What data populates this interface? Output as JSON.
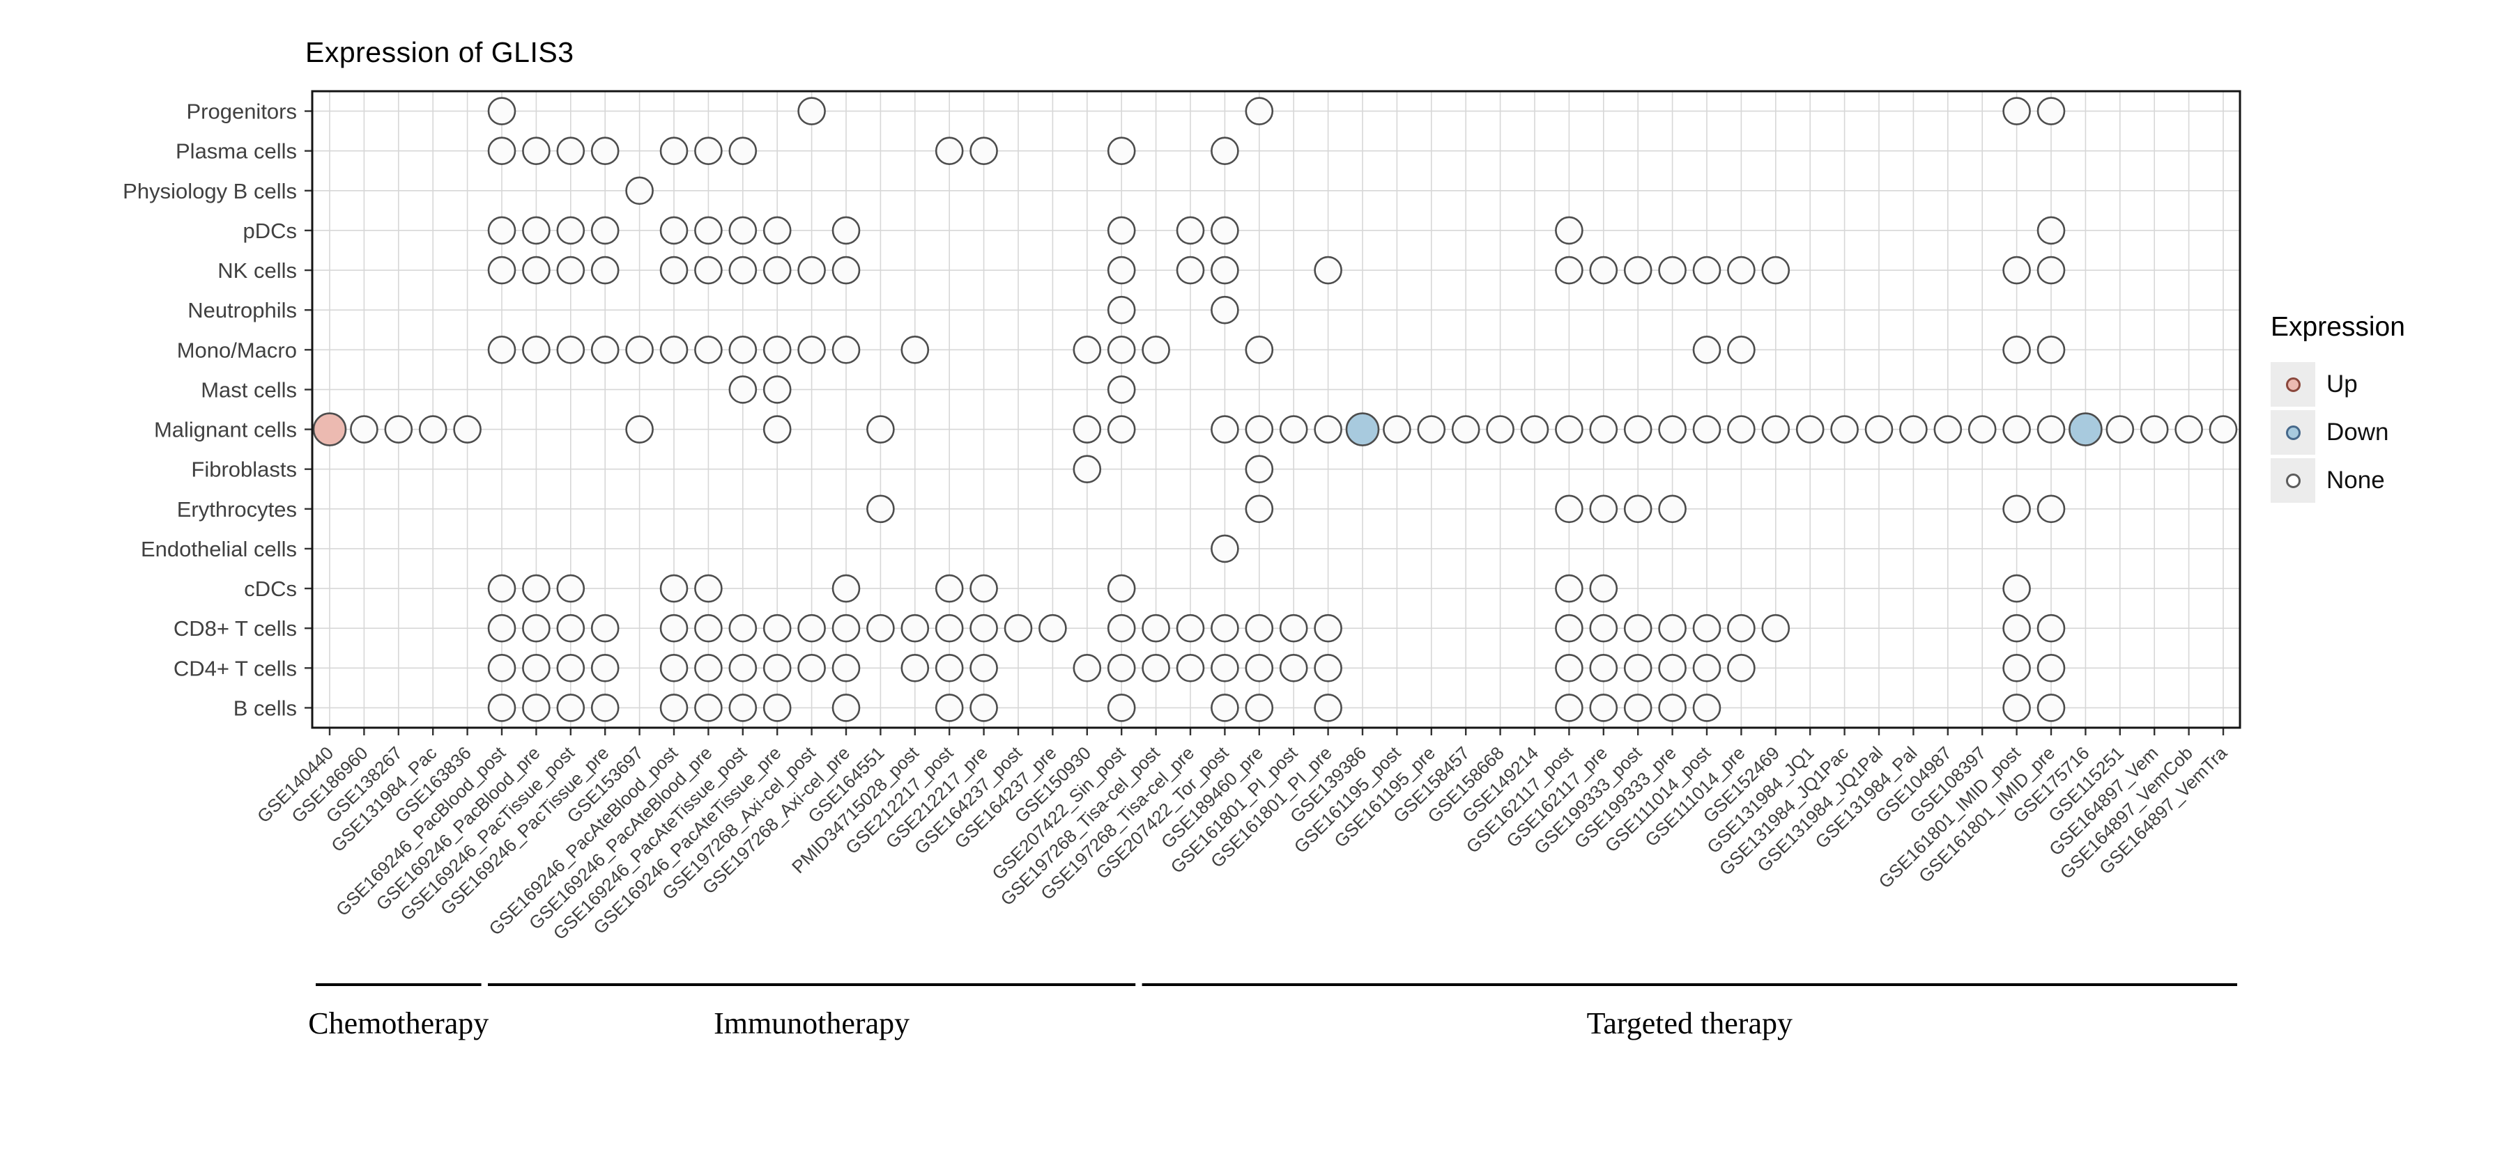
{
  "chart_data": {
    "type": "scatter",
    "subtype": "dot-grid",
    "title": "Expression of GLIS3",
    "grid": true,
    "legend_position": "right",
    "rows": [
      "Progenitors",
      "Plasma cells",
      "Physiology B cells",
      "pDCs",
      "NK cells",
      "Neutrophils",
      "Mono/Macro",
      "Mast cells",
      "Malignant cells",
      "Fibroblasts",
      "Erythrocytes",
      "Endothelial cells",
      "cDCs",
      "CD8+ T cells",
      "CD4+ T cells",
      "B cells"
    ],
    "columns": [
      "GSE140440",
      "GSE186960",
      "GSE138267",
      "GSE131984_Pac",
      "GSE163836",
      "GSE169246_PacBlood_post",
      "GSE169246_PacBlood_pre",
      "GSE169246_PacTissue_post",
      "GSE169246_PacTissue_pre",
      "GSE153697",
      "GSE169246_PacAteBlood_post",
      "GSE169246_PacAteBlood_pre",
      "GSE169246_PacAteTissue_post",
      "GSE169246_PacAteTissue_pre",
      "GSE197268_Axi-cel_post",
      "GSE197268_Axi-cel_pre",
      "GSE164551",
      "PMID34715028_post",
      "GSE212217_post",
      "GSE212217_pre",
      "GSE164237_post",
      "GSE164237_pre",
      "GSE150930",
      "GSE207422_Sin_post",
      "GSE197268_Tisa-cel_post",
      "GSE197268_Tisa-cel_pre",
      "GSE207422_Tor_post",
      "GSE189460_pre",
      "GSE161801_PI_post",
      "GSE161801_PI_pre",
      "GSE139386",
      "GSE161195_post",
      "GSE161195_pre",
      "GSE158457",
      "GSE158668",
      "GSE149214",
      "GSE162117_post",
      "GSE162117_pre",
      "GSE199333_post",
      "GSE199333_pre",
      "GSE111014_post",
      "GSE111014_pre",
      "GSE152469",
      "GSE131984_JQ1",
      "GSE131984_JQ1Pac",
      "GSE131984_JQ1Pal",
      "GSE131984_Pal",
      "GSE104987",
      "GSE108397",
      "GSE161801_IMID_post",
      "GSE161801_IMID_pre",
      "GSE175716",
      "GSE115251",
      "GSE164897_Vem",
      "GSE164897_VemCob",
      "GSE164897_VemTra"
    ],
    "groups": [
      {
        "label": "Chemotherapy",
        "start": 0,
        "end": 4
      },
      {
        "label": "Immunotherapy",
        "start": 5,
        "end": 23
      },
      {
        "label": "Targeted therapy",
        "start": 24,
        "end": 55
      }
    ],
    "legend": {
      "title": "Expression",
      "items": [
        {
          "label": "Up",
          "value": "up",
          "fill": "#ecbab1",
          "stroke": "#8a473c"
        },
        {
          "label": "Down",
          "value": "down",
          "fill": "#a8cade",
          "stroke": "#46688a"
        },
        {
          "label": "None",
          "value": "none",
          "fill": "#ffffff",
          "stroke": "#5c5c5c"
        }
      ]
    },
    "states": {
      "up_fill": "#ecbab1",
      "down_fill": "#a8cade",
      "none_fill": "#fbfbfb",
      "stroke": "#4d4d4d"
    },
    "cells": [
      {
        "row": "Progenitors",
        "none": [
          5,
          14,
          27,
          49,
          50
        ]
      },
      {
        "row": "Plasma cells",
        "none": [
          5,
          6,
          7,
          8,
          10,
          11,
          12,
          18,
          19,
          23,
          26
        ]
      },
      {
        "row": "Physiology B cells",
        "none": [
          9
        ]
      },
      {
        "row": "pDCs",
        "none": [
          5,
          6,
          7,
          8,
          10,
          11,
          12,
          13,
          15,
          23,
          25,
          26,
          36,
          50
        ]
      },
      {
        "row": "NK cells",
        "none": [
          5,
          6,
          7,
          8,
          10,
          11,
          12,
          13,
          14,
          15,
          23,
          25,
          26,
          29,
          36,
          37,
          38,
          39,
          40,
          41,
          42,
          49,
          50
        ]
      },
      {
        "row": "Neutrophils",
        "none": [
          23,
          26
        ]
      },
      {
        "row": "Mono/Macro",
        "none": [
          5,
          6,
          7,
          8,
          9,
          10,
          11,
          12,
          13,
          14,
          15,
          17,
          22,
          23,
          24,
          27,
          40,
          41,
          49,
          50
        ]
      },
      {
        "row": "Mast cells",
        "none": [
          12,
          13,
          23
        ]
      },
      {
        "row": "Malignant cells",
        "up": [
          0
        ],
        "down": [
          30,
          51
        ],
        "none": [
          1,
          2,
          3,
          4,
          9,
          13,
          16,
          22,
          23,
          26,
          27,
          28,
          29,
          31,
          32,
          33,
          34,
          35,
          36,
          37,
          38,
          39,
          40,
          41,
          42,
          43,
          44,
          45,
          46,
          47,
          48,
          49,
          50,
          52,
          53,
          54,
          55
        ]
      },
      {
        "row": "Fibroblasts",
        "none": [
          22,
          27
        ]
      },
      {
        "row": "Erythrocytes",
        "none": [
          16,
          27,
          36,
          37,
          38,
          39,
          49,
          50
        ]
      },
      {
        "row": "Endothelial cells",
        "none": [
          26
        ]
      },
      {
        "row": "cDCs",
        "none": [
          5,
          6,
          7,
          10,
          11,
          15,
          18,
          19,
          23,
          36,
          37,
          49
        ]
      },
      {
        "row": "CD8+ T cells",
        "none": [
          5,
          6,
          7,
          8,
          10,
          11,
          12,
          13,
          14,
          15,
          16,
          17,
          18,
          19,
          20,
          21,
          23,
          24,
          25,
          26,
          27,
          28,
          29,
          36,
          37,
          38,
          39,
          40,
          41,
          42,
          49,
          50
        ]
      },
      {
        "row": "CD4+ T cells",
        "none": [
          5,
          6,
          7,
          8,
          10,
          11,
          12,
          13,
          14,
          15,
          17,
          18,
          19,
          22,
          23,
          24,
          25,
          26,
          27,
          28,
          29,
          36,
          37,
          38,
          39,
          40,
          41,
          49,
          50
        ]
      },
      {
        "row": "B cells",
        "none": [
          5,
          6,
          7,
          8,
          10,
          11,
          12,
          13,
          15,
          18,
          19,
          23,
          26,
          27,
          29,
          36,
          37,
          38,
          39,
          40,
          49,
          50
        ]
      }
    ]
  }
}
